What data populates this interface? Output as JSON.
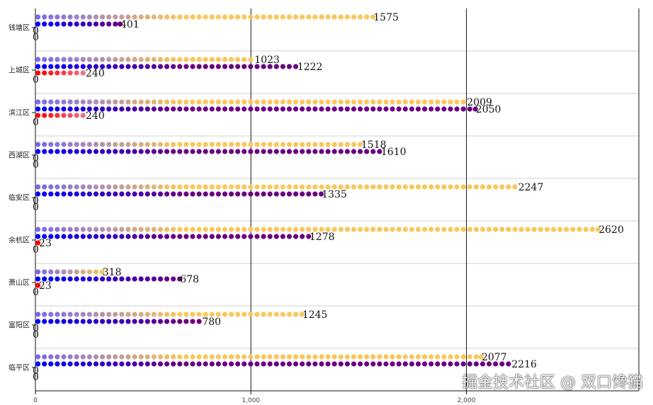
{
  "chart_data": {
    "type": "bar",
    "orientation": "horizontal",
    "style": "pictorial-dots",
    "categories": [
      "钱塘区",
      "上城区",
      "滨江区",
      "西湖区",
      "临安区",
      "余杭区",
      "萧山区",
      "富阳区",
      "临平区"
    ],
    "series": [
      {
        "values": [
          1575,
          1023,
          2009,
          1518,
          2247,
          2620,
          318,
          1245,
          2077
        ],
        "color_start": "#7b68ee",
        "color_end": "#f9c75b"
      },
      {
        "values": [
          401,
          1222,
          2050,
          1610,
          1335,
          1278,
          678,
          780,
          2216
        ],
        "color_start": "#0000ff",
        "color_end": "#6a0080"
      },
      {
        "values": [
          0,
          240,
          240,
          0,
          0,
          23,
          23,
          0,
          0
        ],
        "color_start": "#ff0000",
        "color_end": "#f07080"
      },
      {
        "values": [
          0,
          0,
          0,
          0,
          0,
          0,
          0,
          0,
          0
        ],
        "color_start": "#ff0000",
        "color_end": "#ff0000"
      }
    ],
    "xlim": [
      0,
      2800
    ],
    "x_ticks": [
      0,
      1000,
      2000
    ],
    "x_tick_labels": [
      "0",
      "1,000",
      "2,000"
    ],
    "grid": "vertical lines at major ticks, horizontal separators between categories"
  },
  "watermark": "掘金技术社区 @ 双口馋猫"
}
